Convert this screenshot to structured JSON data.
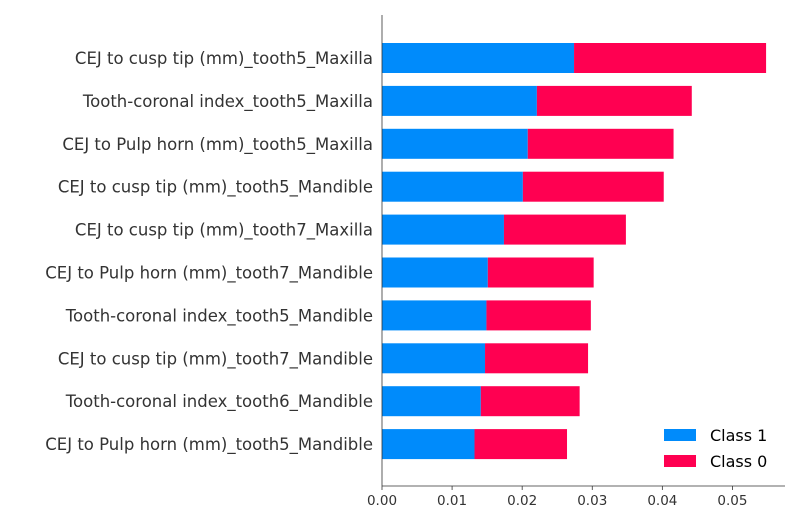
{
  "chart_data": {
    "type": "bar",
    "orientation": "horizontal",
    "stacked": true,
    "categories": [
      "CEJ to cusp tip (mm)_tooth5_Maxilla",
      "Tooth-coronal index_tooth5_Maxilla",
      "CEJ to Pulp horn (mm)_tooth5_Maxilla",
      "CEJ to cusp tip (mm)_tooth5_Mandible",
      "CEJ to cusp tip (mm)_tooth7_Maxilla",
      "CEJ to Pulp horn (mm)_tooth7_Mandible",
      "Tooth-coronal index_tooth5_Mandible",
      "CEJ to cusp tip (mm)_tooth7_Mandible",
      "Tooth-coronal index_tooth6_Mandible",
      "CEJ to Pulp horn (mm)_tooth5_Mandible"
    ],
    "series": [
      {
        "name": "Class 1",
        "color": "#008bfb",
        "values": [
          0.0274,
          0.0221,
          0.0208,
          0.0201,
          0.0174,
          0.0151,
          0.0149,
          0.0147,
          0.0141,
          0.0132
        ]
      },
      {
        "name": "Class 0",
        "color": "#ff0051",
        "values": [
          0.0274,
          0.0221,
          0.0208,
          0.0201,
          0.0174,
          0.0151,
          0.0149,
          0.0147,
          0.0141,
          0.0132
        ]
      }
    ],
    "xlim": [
      0,
      0.0575
    ],
    "xticks": [
      0.0,
      0.01,
      0.02,
      0.03,
      0.04,
      0.05
    ],
    "xtick_labels": [
      "0.00",
      "0.01",
      "0.02",
      "0.03",
      "0.04",
      "0.05"
    ],
    "title": "",
    "xlabel": "",
    "ylabel": "",
    "grid": false,
    "legend_position": "lower-right"
  }
}
